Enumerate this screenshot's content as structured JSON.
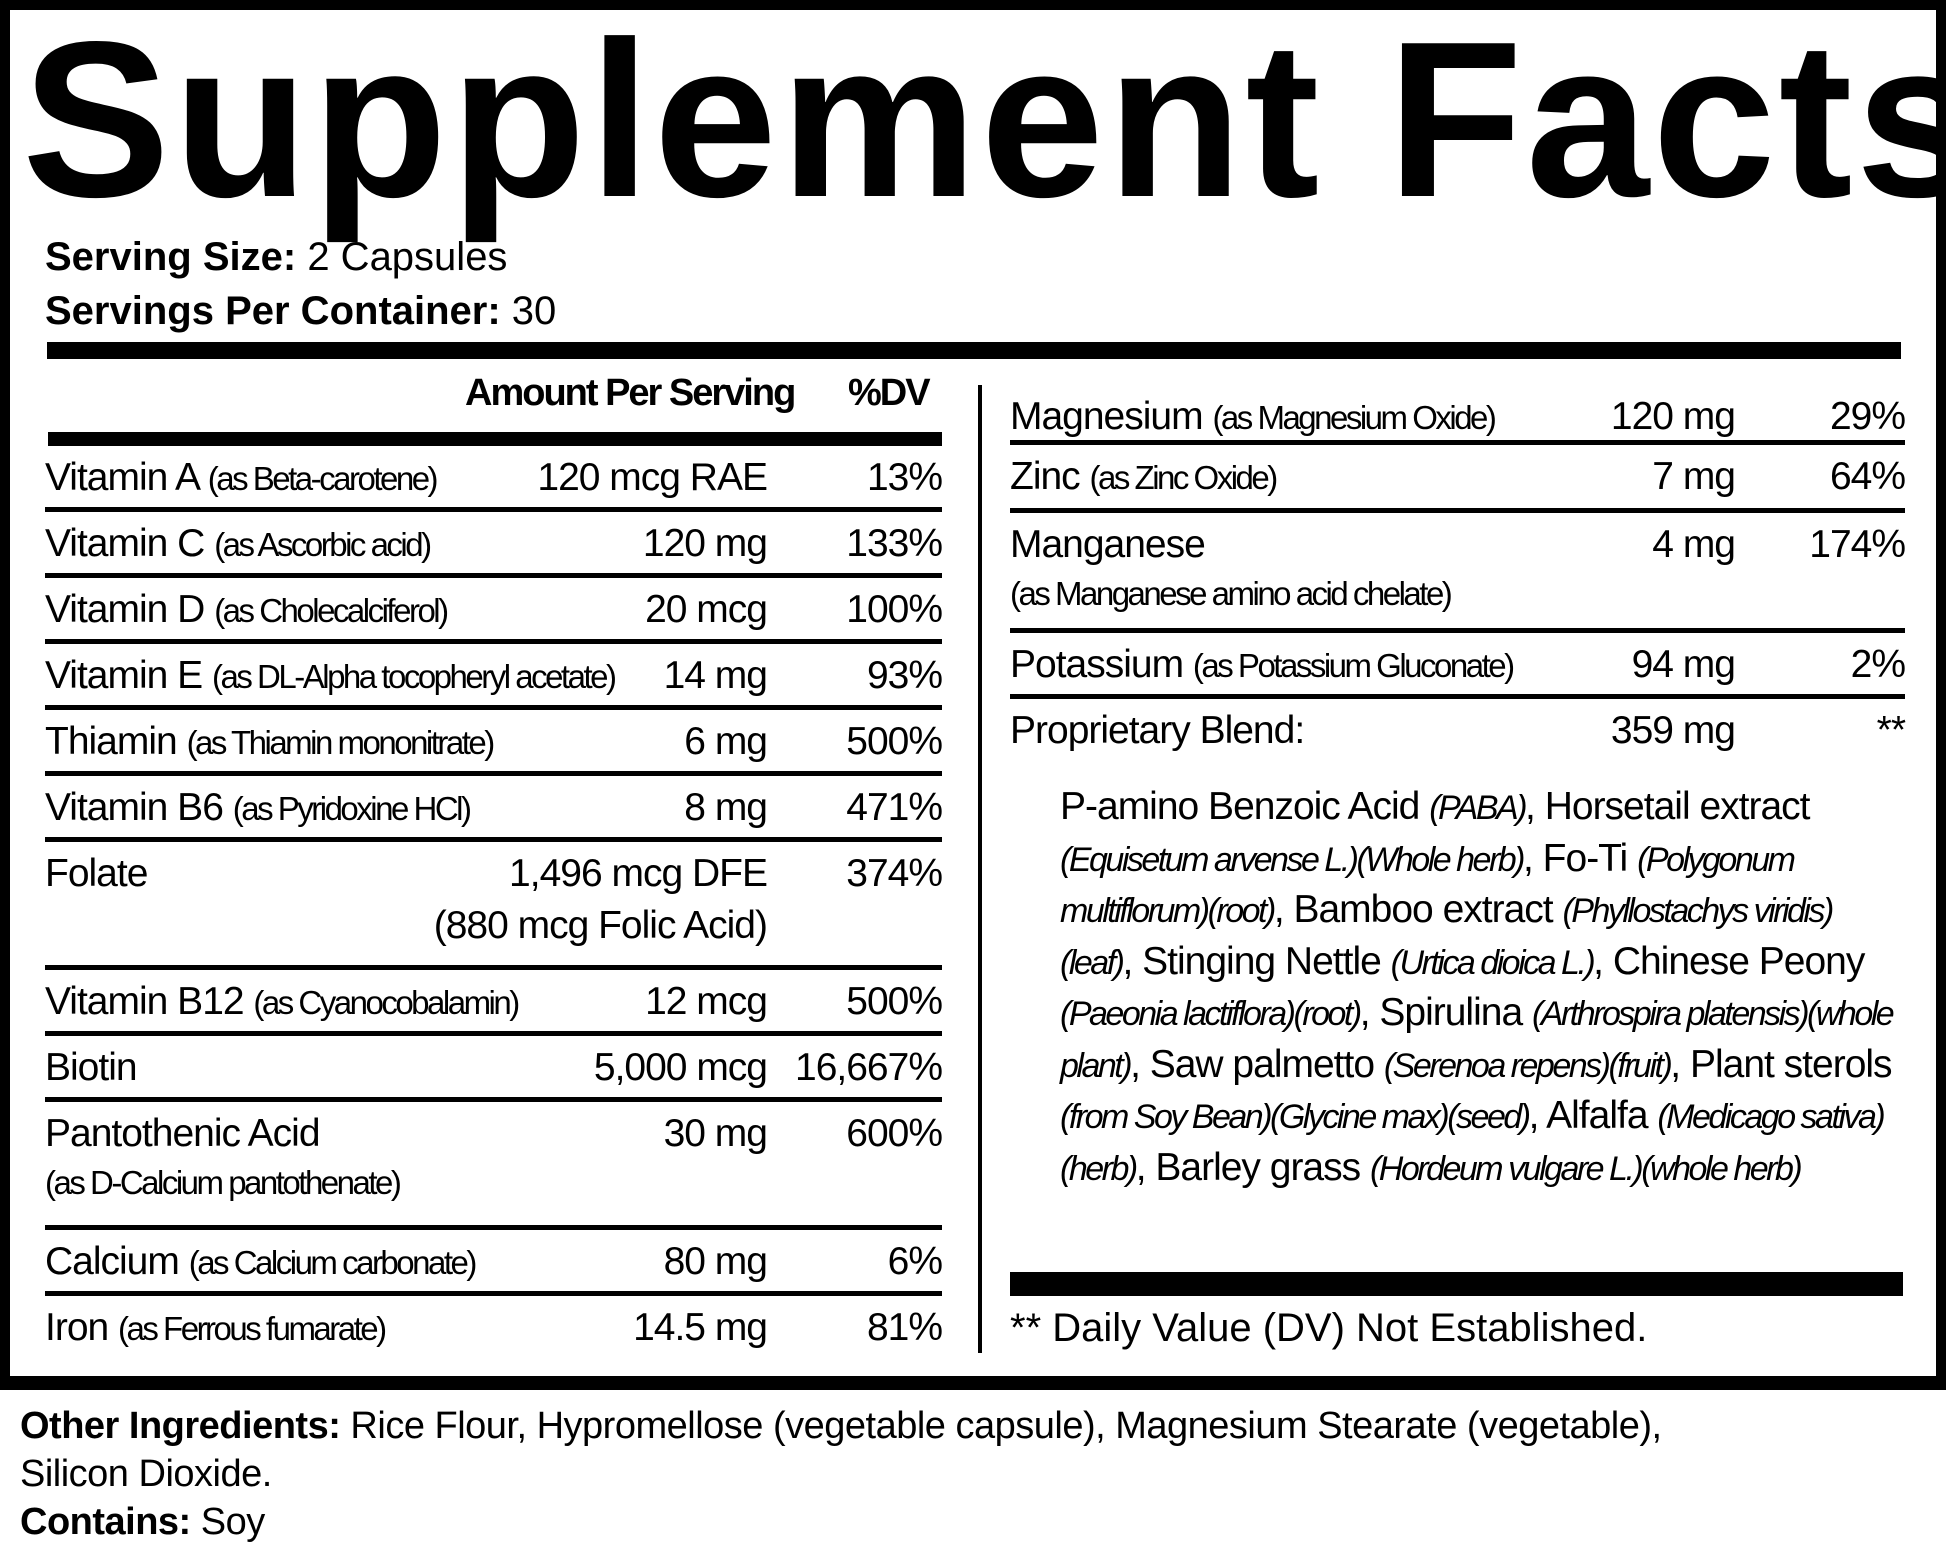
{
  "title": "Supplement Facts",
  "serving": {
    "size_label": "Serving Size:",
    "size_value": " 2 Capsules",
    "per_container_label": "Servings Per Container:",
    "per_container_value": " 30"
  },
  "header": {
    "amount": "Amount Per Serving",
    "dv": "%DV"
  },
  "left_rows": [
    {
      "name": "Vitamin A",
      "source": "(as Beta-carotene)",
      "amount": "120 mcg RAE",
      "dv": "13%"
    },
    {
      "name": "Vitamin C",
      "source": "(as Ascorbic acid)",
      "amount": "120 mg",
      "dv": "133%"
    },
    {
      "name": "Vitamin D",
      "source": "(as Cholecalciferol)",
      "amount": "20 mcg",
      "dv": "100%"
    },
    {
      "name": "Vitamin E",
      "source": "(as DL-Alpha tocopheryl acetate)",
      "amount": "14 mg",
      "dv": "93%"
    },
    {
      "name": "Thiamin",
      "source": "(as Thiamin mononitrate)",
      "amount": "6 mg",
      "dv": "500%"
    },
    {
      "name": "Vitamin B6",
      "source": "(as Pyridoxine HCl)",
      "amount": "8 mg",
      "dv": "471%"
    },
    {
      "name": "Folate",
      "source": "",
      "amount": "1,496 mcg DFE",
      "amount2": "(880 mcg Folic Acid)",
      "dv": "374%"
    },
    {
      "name": "Vitamin B12",
      "source": "(as Cyanocobalamin)",
      "amount": "12 mcg",
      "dv": "500%"
    },
    {
      "name": "Biotin",
      "source": "",
      "amount": "5,000 mcg",
      "dv": "16,667%"
    },
    {
      "name": "Pantothenic Acid",
      "source": "",
      "sub": "(as  D-Calcium pantothenate)",
      "amount": "30 mg",
      "dv": "600%"
    },
    {
      "name": "Calcium",
      "source": "(as Calcium carbonate)",
      "amount": "80 mg",
      "dv": "6%"
    },
    {
      "name": "Iron",
      "source": "(as Ferrous fumarate)",
      "amount": "14.5 mg",
      "dv": "81%"
    }
  ],
  "right_rows": [
    {
      "name": "Magnesium",
      "source": "(as Magnesium Oxide)",
      "amount": "120 mg",
      "dv": "29%"
    },
    {
      "name": "Zinc",
      "source": "(as Zinc Oxide)",
      "amount": "7 mg",
      "dv": "64%"
    },
    {
      "name": "Manganese",
      "source": "",
      "sub": "(as Manganese amino acid chelate)",
      "amount": "4 mg",
      "dv": "174%"
    },
    {
      "name": "Potassium",
      "source": "(as Potassium Gluconate)",
      "amount": "94 mg",
      "dv": "2%"
    },
    {
      "name": "Proprietary Blend:",
      "source": "",
      "amount": "359 mg",
      "dv": "**"
    }
  ],
  "blend_segments": [
    {
      "text": "P-amino Benzoic Acid ",
      "italic": false
    },
    {
      "text": "(PABA)",
      "italic": true
    },
    {
      "text": ", Horsetail extract ",
      "italic": false
    },
    {
      "text": "(Equisetum arvense L.)(Whole herb)",
      "italic": true
    },
    {
      "text": ", Fo-Ti ",
      "italic": false
    },
    {
      "text": "(Polygonum multiflorum)(root)",
      "italic": true
    },
    {
      "text": ", Bamboo extract ",
      "italic": false
    },
    {
      "text": "(Phyllostachys viridis)(leaf)",
      "italic": true
    },
    {
      "text": ", Stinging Nettle  ",
      "italic": false
    },
    {
      "text": "(Urtica dioica L.)",
      "italic": true
    },
    {
      "text": ", Chinese Peony ",
      "italic": false
    },
    {
      "text": "(Paeonia lactiflora)(root)",
      "italic": true
    },
    {
      "text": ", Spirulina ",
      "italic": false
    },
    {
      "text": "(Arthrospira platensis)(whole plant)",
      "italic": true
    },
    {
      "text": ", Saw palmetto ",
      "italic": false
    },
    {
      "text": "(Serenoa repens)(fruit)",
      "italic": true
    },
    {
      "text": ", Plant sterols ",
      "italic": false
    },
    {
      "text": "(from Soy Bean)(Glycine max)(seed)",
      "italic": true
    },
    {
      "text": ", Alfalfa ",
      "italic": false
    },
    {
      "text": "(Medicago sativa)(herb)",
      "italic": true
    },
    {
      "text": ", Barley grass ",
      "italic": false
    },
    {
      "text": "(Hordeum vulgare L.)(whole herb)",
      "italic": true
    }
  ],
  "dv_note": "** Daily Value (DV) Not Established.",
  "footer": {
    "other_label": "Other Ingredients:",
    "other_value": " Rice Flour, Hypromellose (vegetable capsule), Magnesium Stearate (vegetable), Silicon Dioxide.",
    "contains_label": "Contains:",
    "contains_value": " Soy"
  }
}
